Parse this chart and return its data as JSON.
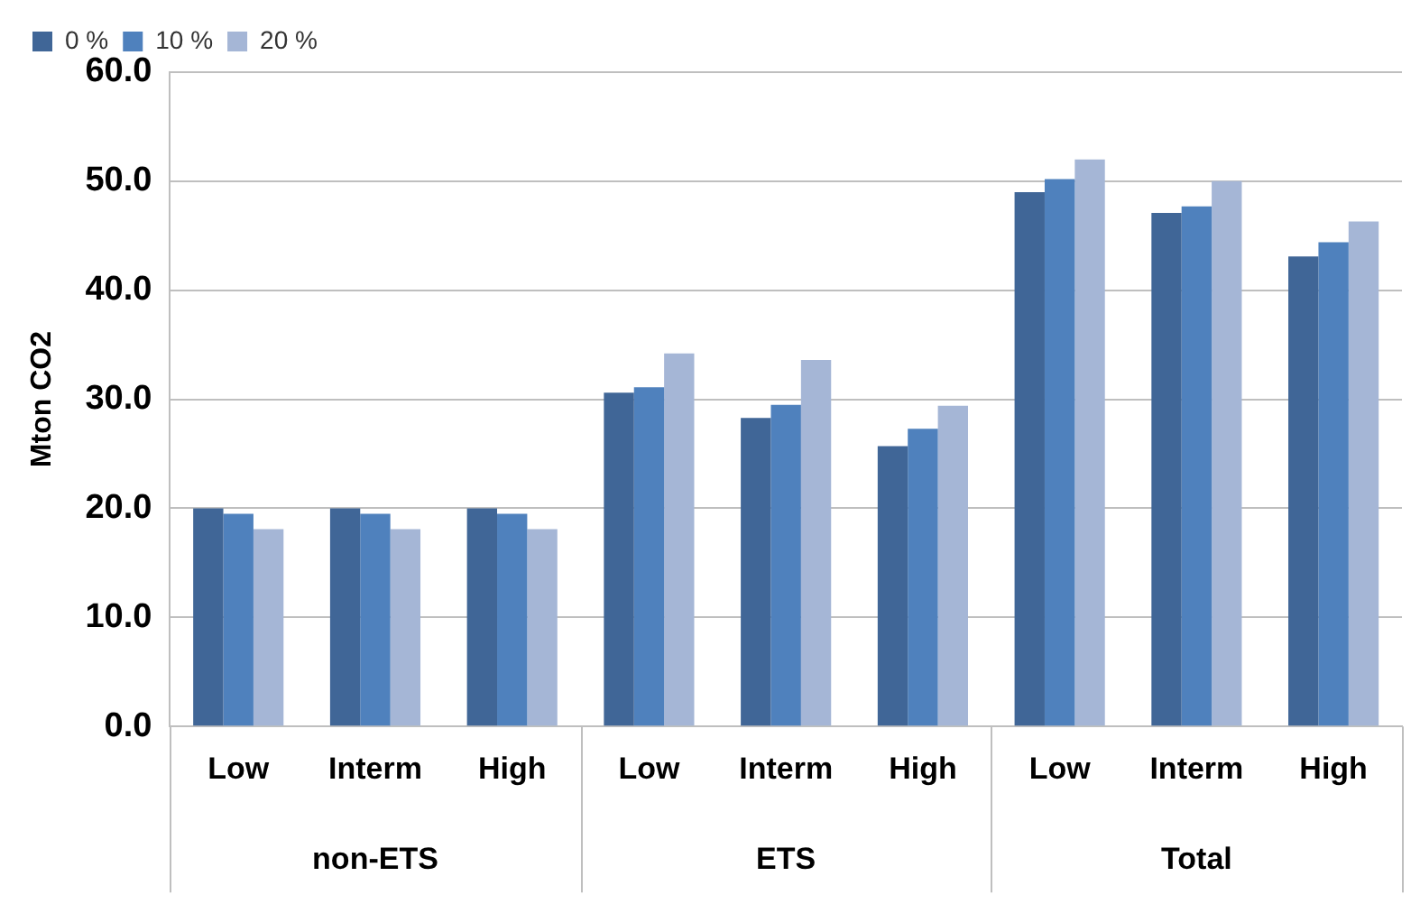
{
  "chart_data": {
    "type": "bar",
    "ylabel": "Mton CO2",
    "categories": [
      "Low",
      "Interm",
      "High",
      "Low",
      "Interm",
      "High",
      "Low",
      "Interm",
      "High"
    ],
    "annotations": [
      "non-ETS",
      "ETS",
      "Total"
    ],
    "series": [
      {
        "name": "0 %",
        "color": "#406697",
        "values": [
          20.0,
          20.0,
          20.0,
          30.6,
          28.3,
          25.7,
          49.0,
          47.1,
          43.1
        ]
      },
      {
        "name": "10 %",
        "color": "#4f81bd",
        "values": [
          19.5,
          19.5,
          19.5,
          31.1,
          29.5,
          27.3,
          50.2,
          47.7,
          44.4
        ]
      },
      {
        "name": "20 %",
        "color": "#a5b6d6",
        "values": [
          18.1,
          18.1,
          18.1,
          34.2,
          33.6,
          29.4,
          52.0,
          50.0,
          46.3
        ]
      }
    ],
    "ylim": [
      0,
      60
    ],
    "yticks": [
      {
        "value": 0,
        "label": "0.0"
      },
      {
        "value": 10,
        "label": "10.0"
      },
      {
        "value": 20,
        "label": "20.0"
      },
      {
        "value": 30,
        "label": "30.0"
      },
      {
        "value": 40,
        "label": "40.0"
      },
      {
        "value": 50,
        "label": "50.0"
      },
      {
        "value": 60,
        "label": "60.0"
      }
    ],
    "grid": "y",
    "legend": "top left"
  }
}
